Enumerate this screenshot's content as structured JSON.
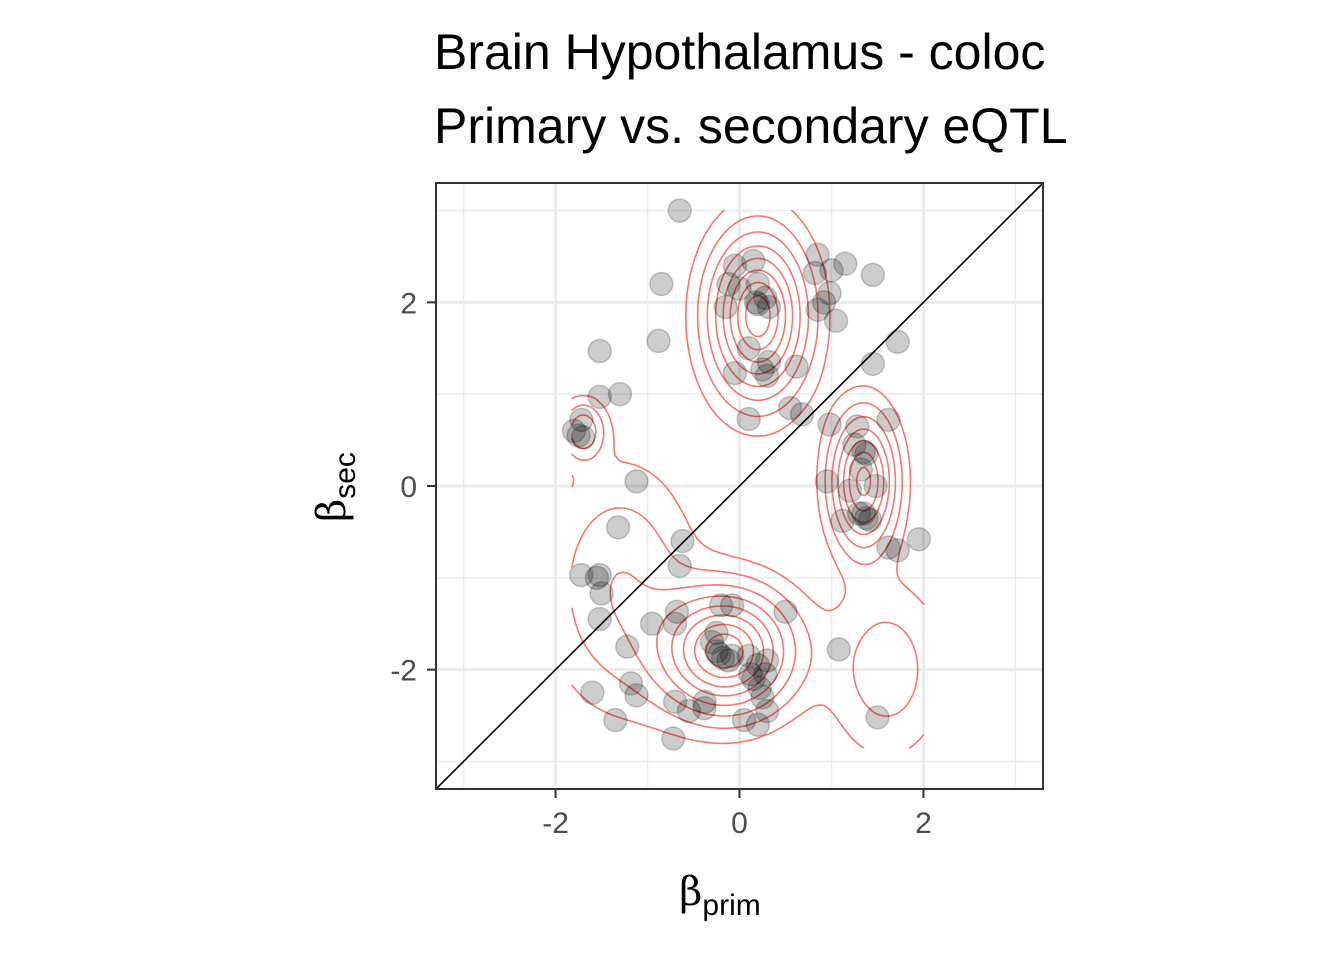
{
  "chart_data": {
    "type": "scatter",
    "title": "Brain Hypothalamus - coloc",
    "subtitle": "Primary vs. secondary eQTL",
    "xlabel": {
      "symbol": "β",
      "subscript": "prim"
    },
    "ylabel": {
      "symbol": "β",
      "subscript": "sec"
    },
    "xlim": [
      -3.3,
      3.3
    ],
    "ylim": [
      -3.3,
      3.3
    ],
    "xticks": [
      -2,
      0,
      2
    ],
    "yticks": [
      -2,
      0,
      2
    ],
    "xtick_labels": [
      "-2",
      "0",
      "2"
    ],
    "ytick_labels": [
      "-2",
      "0",
      "2"
    ],
    "grid": true,
    "reference_line": "y = x",
    "colors": {
      "points": "#000000",
      "contours": "#f8766d",
      "reference_line": "#000000",
      "grid": "#ebebeb",
      "panel_border": "#333333"
    },
    "density_modes": [
      {
        "x": 0.2,
        "y": 1.85,
        "sx": 0.33,
        "sy": 0.55,
        "w": 1.0
      },
      {
        "x": -0.15,
        "y": -1.8,
        "sx": 0.45,
        "sy": 0.42,
        "w": 1.0
      },
      {
        "x": 1.35,
        "y": 0.05,
        "sx": 0.22,
        "sy": 0.45,
        "w": 0.85
      },
      {
        "x": -1.7,
        "y": 0.6,
        "sx": 0.15,
        "sy": 0.2,
        "w": 0.35
      },
      {
        "x": -1.3,
        "y": -1.1,
        "sx": 0.5,
        "sy": 0.8,
        "w": 0.25
      },
      {
        "x": 1.6,
        "y": -2.0,
        "sx": 0.4,
        "sy": 0.6,
        "w": 0.2
      }
    ],
    "points": [
      [
        -0.65,
        3.0
      ],
      [
        -0.85,
        2.2
      ],
      [
        -0.88,
        1.58
      ],
      [
        -1.52,
        1.47
      ],
      [
        -1.52,
        0.97
      ],
      [
        -1.3,
        1.0
      ],
      [
        -1.72,
        0.72
      ],
      [
        -1.75,
        0.55
      ],
      [
        -1.8,
        0.6
      ],
      [
        -1.7,
        0.53
      ],
      [
        -1.12,
        0.05
      ],
      [
        -1.32,
        -0.45
      ],
      [
        -0.62,
        -0.6
      ],
      [
        -0.65,
        -0.87
      ],
      [
        -1.72,
        -0.97
      ],
      [
        -1.52,
        -0.97
      ],
      [
        -1.55,
        -1.0
      ],
      [
        -1.5,
        -1.17
      ],
      [
        -1.52,
        -1.45
      ],
      [
        -0.95,
        -1.5
      ],
      [
        -1.22,
        -1.75
      ],
      [
        -1.6,
        -2.25
      ],
      [
        -1.18,
        -2.15
      ],
      [
        -1.12,
        -2.28
      ],
      [
        -1.35,
        -2.55
      ],
      [
        -0.68,
        -1.37
      ],
      [
        -0.7,
        -1.5
      ],
      [
        -0.7,
        -2.35
      ],
      [
        -0.55,
        -2.45
      ],
      [
        -0.72,
        -2.75
      ],
      [
        -0.38,
        -2.35
      ],
      [
        -0.38,
        -2.42
      ],
      [
        -0.2,
        -1.3
      ],
      [
        -0.08,
        -1.3
      ],
      [
        -0.25,
        -1.6
      ],
      [
        -0.3,
        -1.7
      ],
      [
        -0.25,
        -1.8
      ],
      [
        -0.22,
        -1.83
      ],
      [
        -0.18,
        -1.87
      ],
      [
        -0.12,
        -1.9
      ],
      [
        -0.08,
        -1.85
      ],
      [
        0.1,
        -1.85
      ],
      [
        0.2,
        -1.95
      ],
      [
        0.12,
        -2.05
      ],
      [
        0.15,
        -2.1
      ],
      [
        0.3,
        -1.9
      ],
      [
        0.28,
        -2.05
      ],
      [
        0.22,
        -2.2
      ],
      [
        0.25,
        -2.3
      ],
      [
        0.3,
        -2.45
      ],
      [
        0.2,
        -2.6
      ],
      [
        0.05,
        -2.55
      ],
      [
        0.5,
        -1.37
      ],
      [
        1.08,
        -1.78
      ],
      [
        1.5,
        -2.52
      ],
      [
        -0.15,
        1.95
      ],
      [
        -0.12,
        2.2
      ],
      [
        -0.05,
        2.4
      ],
      [
        0.0,
        2.15
      ],
      [
        0.15,
        2.45
      ],
      [
        0.2,
        2.2
      ],
      [
        0.18,
        2.0
      ],
      [
        0.2,
        1.98
      ],
      [
        0.28,
        2.05
      ],
      [
        0.32,
        1.95
      ],
      [
        0.3,
        1.2
      ],
      [
        0.25,
        1.27
      ],
      [
        0.32,
        1.35
      ],
      [
        0.62,
        1.3
      ],
      [
        0.1,
        1.5
      ],
      [
        -0.05,
        1.23
      ],
      [
        0.1,
        0.73
      ],
      [
        0.55,
        0.85
      ],
      [
        0.85,
        2.52
      ],
      [
        1.0,
        2.35
      ],
      [
        1.15,
        2.42
      ],
      [
        0.82,
        2.32
      ],
      [
        0.98,
        2.1
      ],
      [
        0.92,
        2.0
      ],
      [
        0.85,
        1.92
      ],
      [
        1.05,
        1.8
      ],
      [
        1.45,
        2.3
      ],
      [
        1.45,
        1.33
      ],
      [
        1.72,
        1.57
      ],
      [
        0.68,
        0.78
      ],
      [
        0.98,
        0.67
      ],
      [
        1.28,
        0.65
      ],
      [
        1.25,
        0.45
      ],
      [
        1.35,
        0.37
      ],
      [
        1.38,
        0.35
      ],
      [
        1.32,
        0.18
      ],
      [
        1.48,
        0.0
      ],
      [
        1.2,
        -0.05
      ],
      [
        0.95,
        0.05
      ],
      [
        1.12,
        -0.38
      ],
      [
        1.3,
        -0.3
      ],
      [
        1.35,
        -0.3
      ],
      [
        1.38,
        -0.35
      ],
      [
        1.42,
        -0.37
      ],
      [
        1.62,
        0.72
      ],
      [
        1.62,
        -0.67
      ],
      [
        1.72,
        -0.7
      ],
      [
        1.95,
        -0.58
      ]
    ]
  }
}
